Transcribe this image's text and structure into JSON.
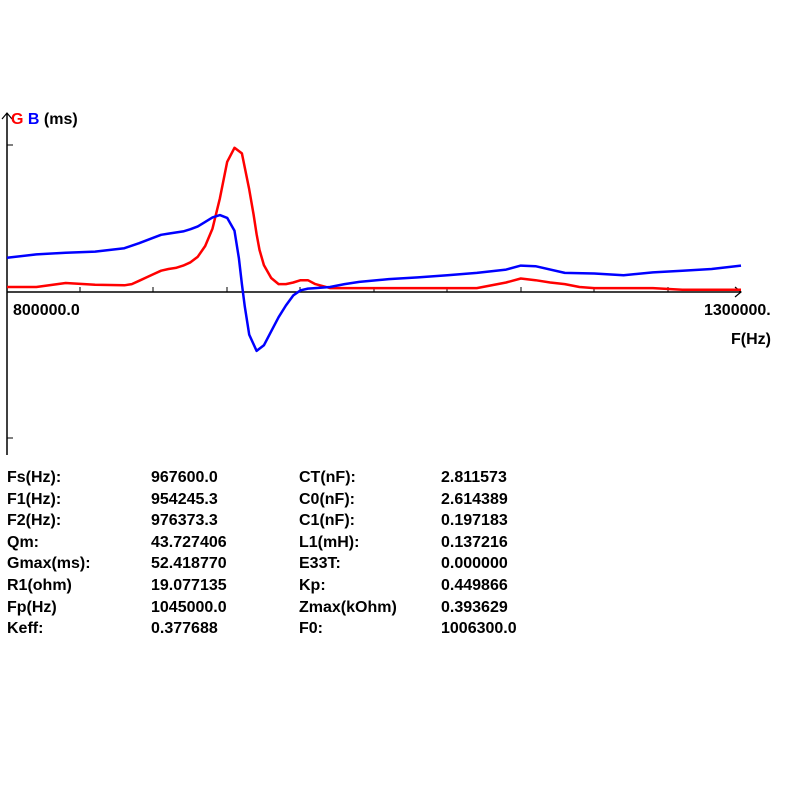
{
  "chart_data": {
    "type": "line",
    "y_axis_title": {
      "g": "G",
      "b": "B",
      "unit": "(ms)"
    },
    "x_axis_title": "F(Hz)",
    "x_tick_labels": {
      "min": "800000.0",
      "max": "1300000."
    },
    "xlim": [
      800000,
      1300000
    ],
    "ylim": [
      -20,
      52.4
    ],
    "series": [
      {
        "name": "G",
        "color": "#ff0000",
        "x": [
          800000,
          820000,
          840000,
          860000,
          880000,
          885000,
          890000,
          895000,
          900000,
          905000,
          910000,
          915000,
          920000,
          925000,
          930000,
          935000,
          940000,
          945000,
          950000,
          955000,
          960000,
          965000,
          968000,
          970000,
          972000,
          975000,
          980000,
          985000,
          990000,
          995000,
          1000000,
          1005000,
          1010000,
          1020000,
          1030000,
          1040000,
          1050000,
          1060000,
          1080000,
          1100000,
          1120000,
          1140000,
          1150000,
          1160000,
          1170000,
          1180000,
          1190000,
          1200000,
          1220000,
          1240000,
          1260000,
          1280000,
          1300000
        ],
        "y": [
          1.8,
          1.8,
          3.2,
          2.6,
          2.4,
          2.8,
          4.0,
          5.2,
          6.4,
          7.6,
          8.2,
          8.6,
          9.4,
          10.6,
          12.6,
          16.4,
          22.6,
          33.4,
          46.4,
          51.4,
          49.4,
          36.6,
          27.6,
          20.6,
          15.0,
          9.6,
          5.0,
          2.8,
          2.8,
          3.4,
          4.2,
          4.2,
          2.8,
          1.4,
          1.4,
          1.4,
          1.4,
          1.4,
          1.4,
          1.4,
          1.4,
          3.4,
          4.8,
          4.2,
          3.4,
          2.8,
          1.8,
          1.4,
          1.4,
          1.4,
          0.8,
          0.8,
          0.8
        ]
      },
      {
        "name": "B",
        "color": "#0000ff",
        "x": [
          800000,
          820000,
          840000,
          860000,
          880000,
          890000,
          900000,
          905000,
          910000,
          915000,
          920000,
          925000,
          930000,
          935000,
          940000,
          945000,
          950000,
          955000,
          958000,
          960000,
          962000,
          965000,
          970000,
          975000,
          980000,
          985000,
          990000,
          995000,
          1000000,
          1005000,
          1010000,
          1020000,
          1030000,
          1040000,
          1060000,
          1080000,
          1100000,
          1120000,
          1140000,
          1150000,
          1160000,
          1180000,
          1200000,
          1220000,
          1240000,
          1260000,
          1280000,
          1300000
        ],
        "y": [
          12.2,
          13.4,
          14.0,
          14.4,
          15.6,
          17.4,
          19.4,
          20.4,
          20.8,
          21.2,
          21.6,
          22.4,
          23.4,
          25.0,
          26.6,
          27.4,
          26.4,
          21.8,
          12.0,
          2.8,
          -5.2,
          -15.2,
          -21.0,
          -19.0,
          -14.0,
          -9.0,
          -4.8,
          -1.2,
          0.6,
          1.2,
          1.4,
          1.8,
          2.8,
          3.6,
          4.6,
          5.2,
          6.0,
          6.8,
          8.0,
          9.4,
          9.2,
          6.8,
          6.6,
          6.0,
          7.0,
          7.6,
          8.2,
          9.4
        ]
      }
    ],
    "grid": false,
    "legend": "none"
  },
  "params": {
    "rows": [
      {
        "l1": "Fs(Hz):",
        "v1": "967600.0",
        "l2": "CT(nF):",
        "v2": "2.811573"
      },
      {
        "l1": "F1(Hz):",
        "v1": "954245.3",
        "l2": "C0(nF):",
        "v2": "2.614389"
      },
      {
        "l1": "F2(Hz):",
        "v1": "976373.3",
        "l2": "C1(nF):",
        "v2": "0.197183"
      },
      {
        "l1": "Qm:",
        "v1": "43.727406",
        "l2": "L1(mH):",
        "v2": "0.137216"
      },
      {
        "l1": "Gmax(ms):",
        "v1": "52.418770",
        "l2": "E33T:",
        "v2": "0.000000"
      },
      {
        "l1": "R1(ohm)",
        "v1": "19.077135",
        "l2": "Kp:",
        "v2": "0.449866"
      },
      {
        "l1": "Fp(Hz)",
        "v1": "1045000.0",
        "l2": "Zmax(kOhm)",
        "v2": "0.393629"
      },
      {
        "l1": "Keff:",
        "v1": "0.377688",
        "l2": "F0:",
        "v2": "1006300.0"
      }
    ]
  }
}
